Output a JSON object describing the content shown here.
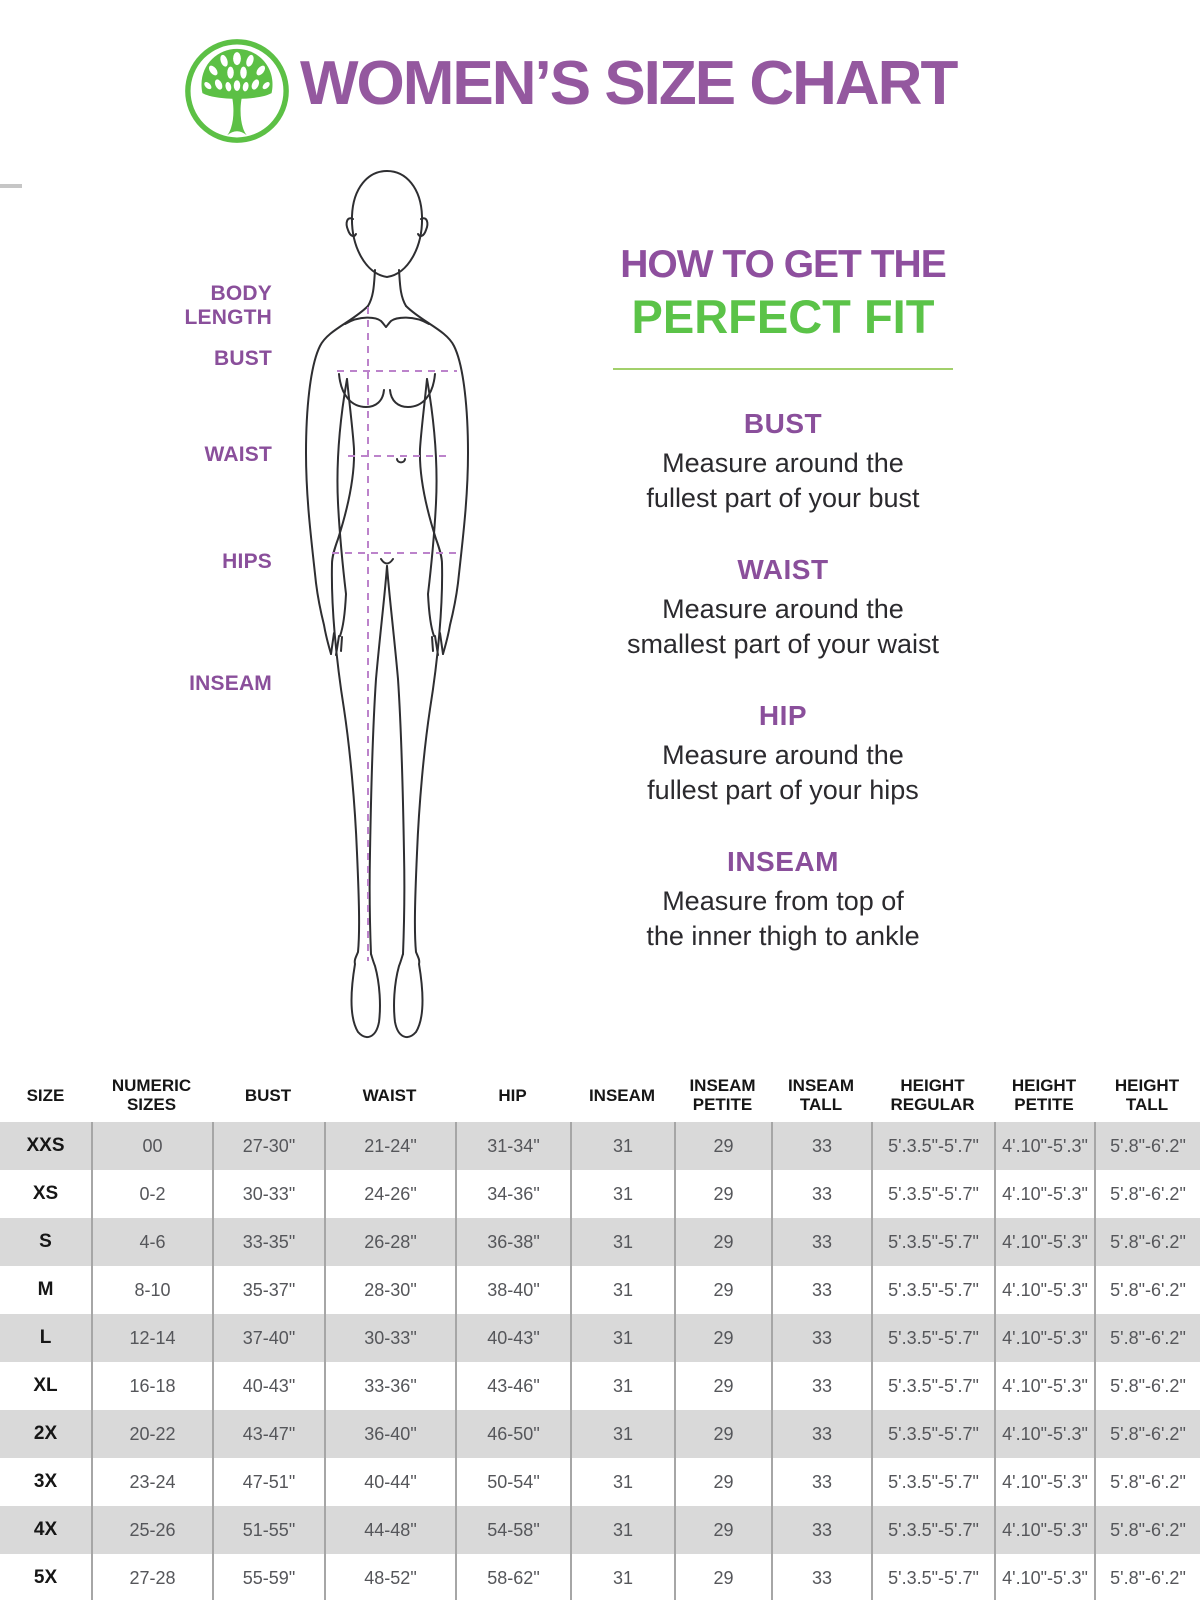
{
  "header": {
    "title": "WOMEN’S SIZE CHART"
  },
  "colors": {
    "purple": "#94589f",
    "green": "#5bc348",
    "dash_purple": "#bc83cb",
    "table_row_gray": "#d9d9d9"
  },
  "diagram": {
    "labels": [
      "BODY LENGTH",
      "BUST",
      "WAIST",
      "HIPS",
      "INSEAM"
    ]
  },
  "guide": {
    "heading_line1": "HOW TO GET THE",
    "heading_line2": "PERFECT FIT",
    "sections": [
      {
        "title": "BUST",
        "lines": [
          "Measure around the",
          "fullest part of your bust"
        ]
      },
      {
        "title": "WAIST",
        "lines": [
          "Measure around the",
          "smallest part of your waist"
        ]
      },
      {
        "title": "HIP",
        "lines": [
          "Measure around the",
          "fullest part of your hips"
        ]
      },
      {
        "title": "INSEAM",
        "lines": [
          "Measure from top of",
          "the inner thigh to ankle"
        ]
      }
    ]
  },
  "size_table": {
    "columns": [
      "SIZE",
      "NUMERIC SIZES",
      "BUST",
      "WAIST",
      "HIP",
      "INSEAM",
      "INSEAM PETITE",
      "INSEAM TALL",
      "HEIGHT REGULAR",
      "HEIGHT PETITE",
      "HEIGHT TALL"
    ],
    "rows": [
      [
        "XXS",
        "00",
        "27-30\"",
        "21-24\"",
        "31-34\"",
        "31",
        "29",
        "33",
        "5'.3.5\"-5'.7\"",
        "4'.10\"-5'.3\"",
        "5'.8\"-6'.2\""
      ],
      [
        "XS",
        "0-2",
        "30-33\"",
        "24-26\"",
        "34-36\"",
        "31",
        "29",
        "33",
        "5'.3.5\"-5'.7\"",
        "4'.10\"-5'.3\"",
        "5'.8\"-6'.2\""
      ],
      [
        "S",
        "4-6",
        "33-35\"",
        "26-28\"",
        "36-38\"",
        "31",
        "29",
        "33",
        "5'.3.5\"-5'.7\"",
        "4'.10\"-5'.3\"",
        "5'.8\"-6'.2\""
      ],
      [
        "M",
        "8-10",
        "35-37\"",
        "28-30\"",
        "38-40\"",
        "31",
        "29",
        "33",
        "5'.3.5\"-5'.7\"",
        "4'.10\"-5'.3\"",
        "5'.8\"-6'.2\""
      ],
      [
        "L",
        "12-14",
        "37-40\"",
        "30-33\"",
        "40-43\"",
        "31",
        "29",
        "33",
        "5'.3.5\"-5'.7\"",
        "4'.10\"-5'.3\"",
        "5'.8\"-6'.2\""
      ],
      [
        "XL",
        "16-18",
        "40-43\"",
        "33-36\"",
        "43-46\"",
        "31",
        "29",
        "33",
        "5'.3.5\"-5'.7\"",
        "4'.10\"-5'.3\"",
        "5'.8\"-6'.2\""
      ],
      [
        "2X",
        "20-22",
        "43-47\"",
        "36-40\"",
        "46-50\"",
        "31",
        "29",
        "33",
        "5'.3.5\"-5'.7\"",
        "4'.10\"-5'.3\"",
        "5'.8\"-6'.2\""
      ],
      [
        "3X",
        "23-24",
        "47-51\"",
        "40-44\"",
        "50-54\"",
        "31",
        "29",
        "33",
        "5'.3.5\"-5'.7\"",
        "4'.10\"-5'.3\"",
        "5'.8\"-6'.2\""
      ],
      [
        "4X",
        "25-26",
        "51-55\"",
        "44-48\"",
        "54-58\"",
        "31",
        "29",
        "33",
        "5'.3.5\"-5'.7\"",
        "4'.10\"-5'.3\"",
        "5'.8\"-6'.2\""
      ],
      [
        "5X",
        "27-28",
        "55-59\"",
        "48-52\"",
        "58-62\"",
        "31",
        "29",
        "33",
        "5'.3.5\"-5'.7\"",
        "4'.10\"-5'.3\"",
        "5'.8\"-6'.2\""
      ]
    ]
  }
}
